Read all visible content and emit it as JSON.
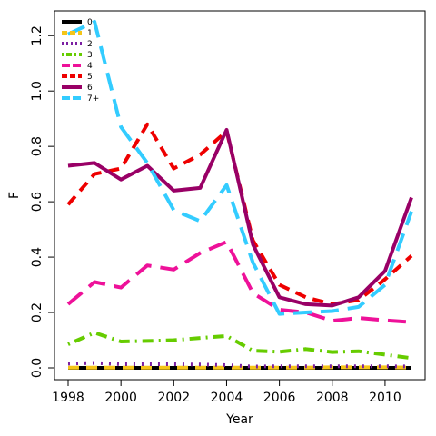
{
  "chart_data": {
    "type": "line",
    "xlabel": "Year",
    "ylabel": "F",
    "xlim": [
      1998,
      2011
    ],
    "ylim": [
      0.0,
      1.25
    ],
    "xticks": [
      1998,
      2000,
      2002,
      2004,
      2006,
      2008,
      2010
    ],
    "yticks": [
      0.0,
      0.2,
      0.4,
      0.6,
      0.8,
      1.0,
      1.2
    ],
    "ytick_labels": [
      "0.0",
      "0.2",
      "0.4",
      "0.6",
      "0.8",
      "1.0",
      "1.2"
    ],
    "legend_position": "top-left",
    "x": [
      1998,
      1999,
      2000,
      2001,
      2002,
      2003,
      2004,
      2005,
      2006,
      2007,
      2008,
      2009,
      2010,
      2011
    ],
    "series": [
      {
        "name": "0",
        "color": "#000000",
        "dash": "solid",
        "values": [
          0.0,
          0.0,
          0.0,
          0.0,
          0.0,
          0.0,
          0.0,
          0.0,
          0.0,
          0.0,
          0.0,
          0.0,
          0.0,
          0.0
        ]
      },
      {
        "name": "1",
        "color": "#F5C518",
        "dash": "dash",
        "values": [
          0.001,
          0.001,
          0.001,
          0.001,
          0.001,
          0.001,
          0.001,
          0.001,
          0.001,
          0.001,
          0.002,
          0.002,
          0.002,
          0.001
        ]
      },
      {
        "name": "2",
        "color": "#7B1FA2",
        "dash": "dot",
        "values": [
          0.015,
          0.018,
          0.013,
          0.013,
          0.013,
          0.012,
          0.01,
          0.005,
          0.006,
          0.006,
          0.006,
          0.006,
          0.006,
          0.005
        ]
      },
      {
        "name": "3",
        "color": "#66CC00",
        "dash": "dotdash",
        "values": [
          0.085,
          0.127,
          0.095,
          0.097,
          0.1,
          0.108,
          0.115,
          0.062,
          0.058,
          0.068,
          0.057,
          0.06,
          0.048,
          0.035
        ]
      },
      {
        "name": "4",
        "color": "#EE1199",
        "dash": "longdash",
        "values": [
          0.23,
          0.31,
          0.29,
          0.37,
          0.355,
          0.415,
          0.455,
          0.27,
          0.21,
          0.2,
          0.17,
          0.18,
          0.172,
          0.165
        ]
      },
      {
        "name": "5",
        "color": "#EE0000",
        "dash": "dash",
        "values": [
          0.59,
          0.7,
          0.72,
          0.88,
          0.72,
          0.77,
          0.855,
          0.46,
          0.3,
          0.255,
          0.23,
          0.245,
          0.32,
          0.405
        ]
      },
      {
        "name": "6",
        "color": "#990066",
        "dash": "solid",
        "values": [
          0.73,
          0.74,
          0.68,
          0.73,
          0.64,
          0.65,
          0.86,
          0.445,
          0.255,
          0.23,
          0.225,
          0.255,
          0.35,
          0.615
        ]
      },
      {
        "name": "7+",
        "color": "#33CCFF",
        "dash": "longdash",
        "values": [
          1.205,
          1.25,
          0.87,
          0.74,
          0.57,
          0.53,
          0.66,
          0.38,
          0.195,
          0.2,
          0.205,
          0.22,
          0.3,
          0.565
        ]
      }
    ]
  }
}
